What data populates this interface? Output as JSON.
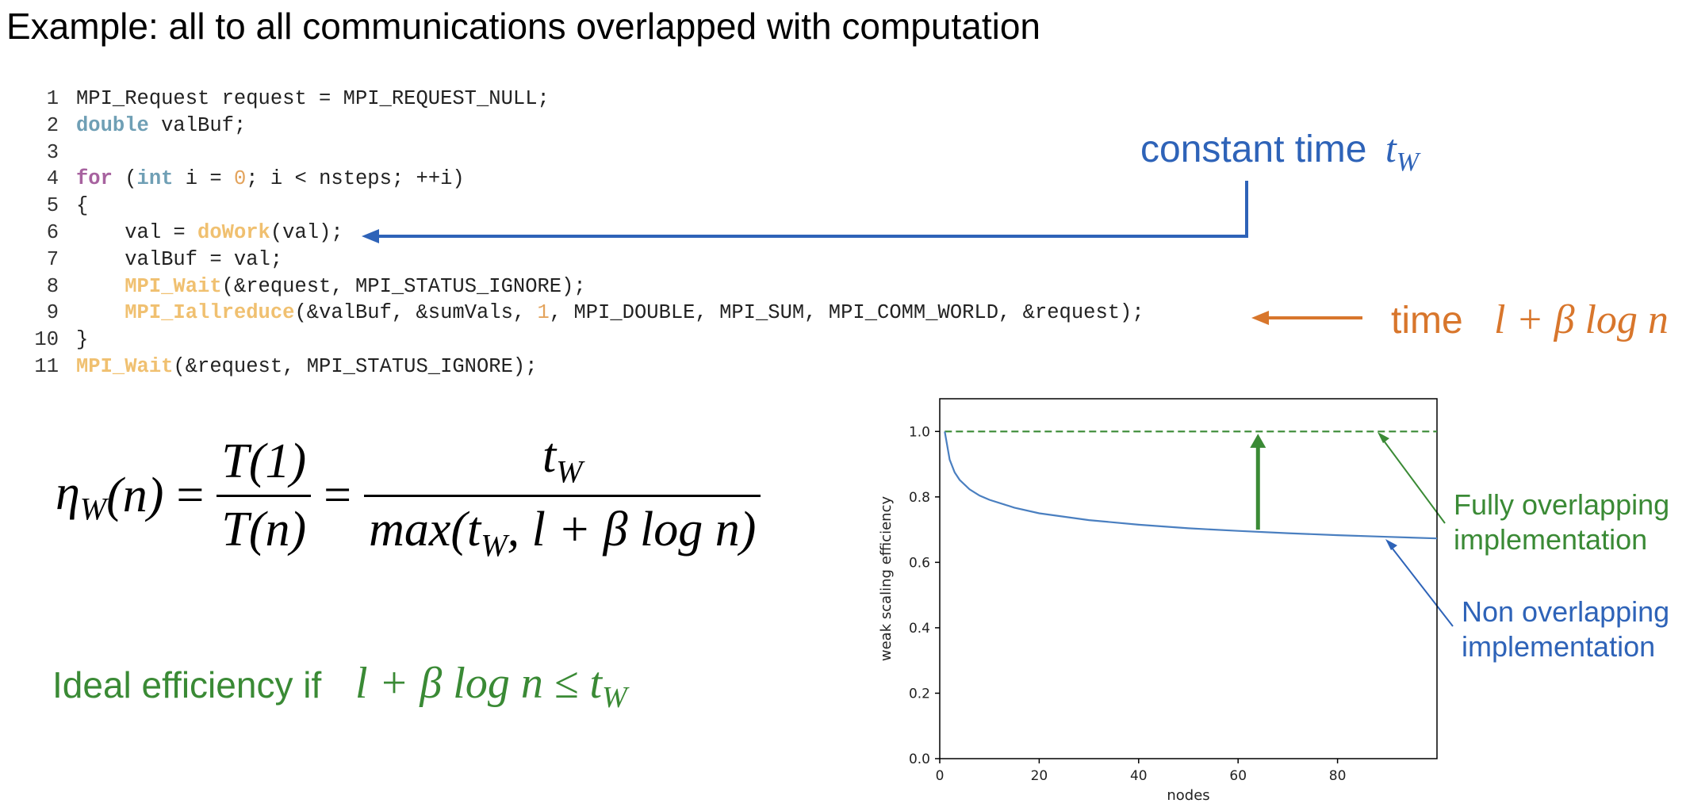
{
  "title": {
    "bold": "Example",
    "rest": ": all to all communications overlapped with computation"
  },
  "code": {
    "lines": [
      {
        "num": "1",
        "tokens": [
          [
            "plain",
            "MPI_Request request = MPI_REQUEST_NULL;"
          ]
        ]
      },
      {
        "num": "2",
        "tokens": [
          [
            "type",
            "double"
          ],
          [
            "plain",
            " valBuf;"
          ]
        ]
      },
      {
        "num": "3",
        "tokens": []
      },
      {
        "num": "4",
        "tokens": [
          [
            "kw",
            "for"
          ],
          [
            "plain",
            " ("
          ],
          [
            "type",
            "int"
          ],
          [
            "plain",
            " i = "
          ],
          [
            "num",
            "0"
          ],
          [
            "plain",
            "; i < nsteps; ++i)"
          ]
        ]
      },
      {
        "num": "5",
        "tokens": [
          [
            "plain",
            "{"
          ]
        ]
      },
      {
        "num": "6",
        "tokens": [
          [
            "plain",
            "    val = "
          ],
          [
            "fn",
            "doWork"
          ],
          [
            "plain",
            "(val);"
          ]
        ]
      },
      {
        "num": "7",
        "tokens": [
          [
            "plain",
            "    valBuf = val;"
          ]
        ]
      },
      {
        "num": "8",
        "tokens": [
          [
            "plain",
            "    "
          ],
          [
            "fn",
            "MPI_Wait"
          ],
          [
            "plain",
            "(&request, MPI_STATUS_IGNORE);"
          ]
        ]
      },
      {
        "num": "9",
        "tokens": [
          [
            "plain",
            "    "
          ],
          [
            "fn",
            "MPI_Iallreduce"
          ],
          [
            "plain",
            "(&valBuf, &sumVals, "
          ],
          [
            "num",
            "1"
          ],
          [
            "plain",
            ", MPI_DOUBLE, MPI_SUM, MPI_COMM_WORLD, &request);"
          ]
        ]
      },
      {
        "num": "10",
        "tokens": [
          [
            "plain",
            "}"
          ]
        ]
      },
      {
        "num": "11",
        "tokens": [
          [
            "fn",
            "MPI_Wait"
          ],
          [
            "plain",
            "(&request, MPI_STATUS_IGNORE);"
          ]
        ]
      }
    ]
  },
  "annotations": {
    "constant_time": "constant time",
    "constant_time_symbol": "t",
    "constant_time_sub": "W",
    "time": "time",
    "time_formula": "l + β log n",
    "ideal_text": "Ideal efficiency if",
    "ideal_formula_lhs": "l + β log n ≤ t",
    "ideal_formula_sub": "W"
  },
  "equation": {
    "lhs": "η",
    "lhs_sub": "W",
    "lhs_arg": "(n)",
    "eq": "=",
    "frac1_num": "T(1)",
    "frac1_den": "T(n)",
    "frac2_num": "t",
    "frac2_num_sub": "W",
    "frac2_den_a": "max(t",
    "frac2_den_sub": "W",
    "frac2_den_b": ", l + β log n)"
  },
  "chart_data": {
    "type": "line",
    "xlabel": "nodes",
    "ylabel": "weak scaling efficiency",
    "xlim": [
      0,
      100
    ],
    "ylim": [
      0,
      1.1
    ],
    "xticks": [
      0,
      20,
      40,
      60,
      80
    ],
    "yticks": [
      0.0,
      0.2,
      0.4,
      0.6,
      0.8,
      1.0
    ],
    "ytick_labels": [
      "0.0",
      "0.2",
      "0.4",
      "0.6",
      "0.8",
      "1.0"
    ],
    "series": [
      {
        "name": "Fully overlapping implementation",
        "style": "dashed",
        "color": "#3a8a35",
        "x": [
          1,
          100
        ],
        "y": [
          1.0,
          1.0
        ]
      },
      {
        "name": "Non overlapping implementation",
        "color": "#4a7fc0",
        "x": [
          1,
          2,
          3,
          4,
          6,
          8,
          10,
          15,
          20,
          30,
          40,
          50,
          60,
          70,
          80,
          90,
          100
        ],
        "y": [
          1.0,
          0.914,
          0.875,
          0.852,
          0.823,
          0.804,
          0.791,
          0.767,
          0.75,
          0.729,
          0.715,
          0.704,
          0.696,
          0.689,
          0.683,
          0.678,
          0.673
        ]
      }
    ],
    "legend_labels": {
      "full": [
        "Fully overlapping",
        "implementation"
      ],
      "non": [
        "Non overlapping",
        "implementation"
      ]
    },
    "colors": {
      "green": "#3a8a35",
      "blue": "#2e63b8",
      "line": "#4a7fc0",
      "orange": "#d8762c"
    }
  }
}
